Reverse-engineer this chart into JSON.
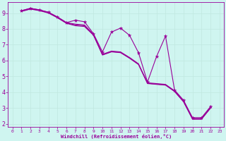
{
  "xlabel": "Windchill (Refroidissement éolien,°C)",
  "background_color": "#cff5f0",
  "grid_color": "#b8e8e0",
  "line_color": "#990099",
  "xlim": [
    -0.5,
    23.5
  ],
  "ylim": [
    1.8,
    9.7
  ],
  "xtick_labels": [
    "0",
    "1",
    "2",
    "3",
    "4",
    "5",
    "6",
    "7",
    "8",
    "9",
    "10",
    "11",
    "12",
    "13",
    "14",
    "15",
    "16",
    "17",
    "18",
    "19",
    "20",
    "21",
    "22",
    "23"
  ],
  "xtick_vals": [
    0,
    1,
    2,
    3,
    4,
    5,
    6,
    7,
    8,
    9,
    10,
    11,
    12,
    13,
    14,
    15,
    16,
    17,
    18,
    19,
    20,
    21,
    22,
    23
  ],
  "ytick_vals": [
    2,
    3,
    4,
    5,
    6,
    7,
    8,
    9
  ],
  "line_lw": 0.8,
  "series_with_markers": {
    "x": [
      1,
      2,
      3,
      4,
      5,
      6,
      7,
      8,
      9,
      10,
      11,
      12,
      13,
      14,
      15,
      16,
      17,
      18,
      19,
      20,
      21,
      22
    ],
    "y": [
      9.15,
      9.3,
      9.2,
      9.05,
      8.75,
      8.4,
      8.55,
      8.45,
      7.7,
      6.55,
      7.8,
      8.05,
      7.6,
      6.5,
      4.65,
      6.25,
      7.55,
      4.15,
      3.5,
      2.4,
      2.4,
      3.1
    ]
  },
  "plain_series": [
    {
      "x": [
        1,
        2,
        3,
        4,
        5,
        6,
        7,
        8,
        9,
        10,
        11,
        12,
        13,
        14,
        15,
        16,
        17,
        18,
        19,
        20,
        21,
        22
      ],
      "y": [
        9.15,
        9.3,
        9.2,
        9.05,
        8.75,
        8.4,
        8.3,
        8.25,
        7.65,
        6.4,
        6.6,
        6.55,
        6.2,
        5.8,
        4.6,
        4.55,
        4.5,
        4.1,
        3.45,
        2.35,
        2.35,
        3.05
      ]
    },
    {
      "x": [
        1,
        2,
        3,
        4,
        5,
        6,
        7,
        8,
        9,
        10,
        11,
        12,
        13,
        14,
        15,
        16,
        17,
        18,
        19,
        20,
        21,
        22
      ],
      "y": [
        9.1,
        9.25,
        9.15,
        9.0,
        8.7,
        8.35,
        8.2,
        8.15,
        7.6,
        6.35,
        6.55,
        6.5,
        6.15,
        5.75,
        4.55,
        4.5,
        4.45,
        4.05,
        3.4,
        2.3,
        2.3,
        3.0
      ]
    },
    {
      "x": [
        1,
        2,
        3,
        4,
        5,
        6,
        7,
        8,
        9,
        10,
        11,
        12,
        13,
        14,
        15,
        16,
        17,
        18,
        19,
        20,
        21,
        22
      ],
      "y": [
        9.12,
        9.27,
        9.17,
        9.02,
        8.72,
        8.37,
        8.25,
        8.2,
        7.62,
        6.37,
        6.57,
        6.52,
        6.17,
        5.77,
        4.57,
        4.52,
        4.47,
        4.07,
        3.42,
        2.32,
        2.32,
        3.02
      ]
    }
  ]
}
